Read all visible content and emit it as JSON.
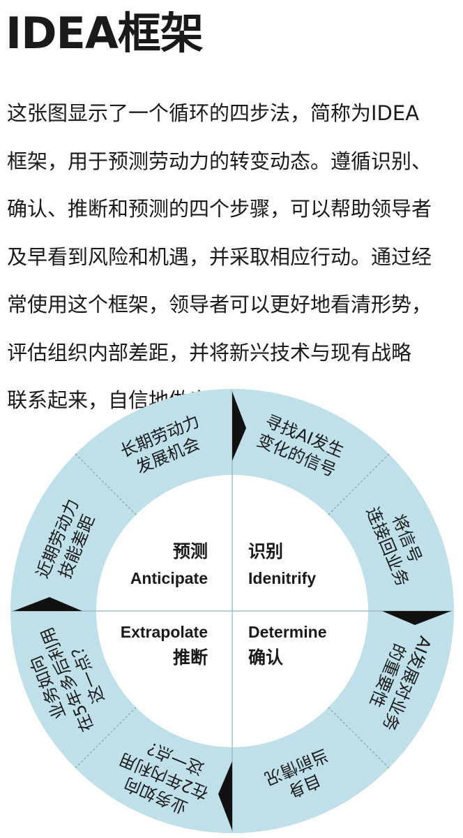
{
  "title": "IDEA框架",
  "paragraph_lines": [
    "这张图显示了一个循环的四步法，简称为IDEA",
    "框架，用于预测劳动力的转变动态。遵循识别、",
    "确认、推断和预测的四个步骤，可以帮助领导者",
    "及早看到风险和机遇，并采取相应行动。通过经",
    "常使用这个框架，领导者可以更好地看清形势，",
    "评估组织内部差距，并将新兴技术与现有战略",
    "联系起来，自信地做出决策。"
  ],
  "diagram": {
    "colors": {
      "ring": "#bfdfe9",
      "arrow": "#111111",
      "divider": "#8fb3c0",
      "text": "#1a1a1a"
    },
    "quadrants": {
      "anticipate": {
        "zh": "预测",
        "en": "Anticipate"
      },
      "identify": {
        "zh": "识别",
        "en": "Idenitrify"
      },
      "extrapolate": {
        "zh": "推断",
        "en": "Extrapolate"
      },
      "determine": {
        "zh": "确认",
        "en": "Determine"
      }
    },
    "segments": [
      {
        "lines": [
          "寻找AI发生",
          "变化的信号"
        ]
      },
      {
        "lines": [
          "将信号",
          "连接回业务"
        ]
      },
      {
        "lines": [
          "AI发展对业务",
          "的重要性"
        ]
      },
      {
        "lines": [
          "自身",
          "当前情况"
        ]
      },
      {
        "lines": [
          "业务如向",
          "在2年内利用",
          "这一点？"
        ]
      },
      {
        "lines": [
          "业务如向",
          "在5年多后利用",
          "这一点？"
        ]
      },
      {
        "lines": [
          "近期劳动力",
          "技能差距"
        ]
      },
      {
        "lines": [
          "长期劳动力",
          "发展机会"
        ]
      }
    ]
  }
}
